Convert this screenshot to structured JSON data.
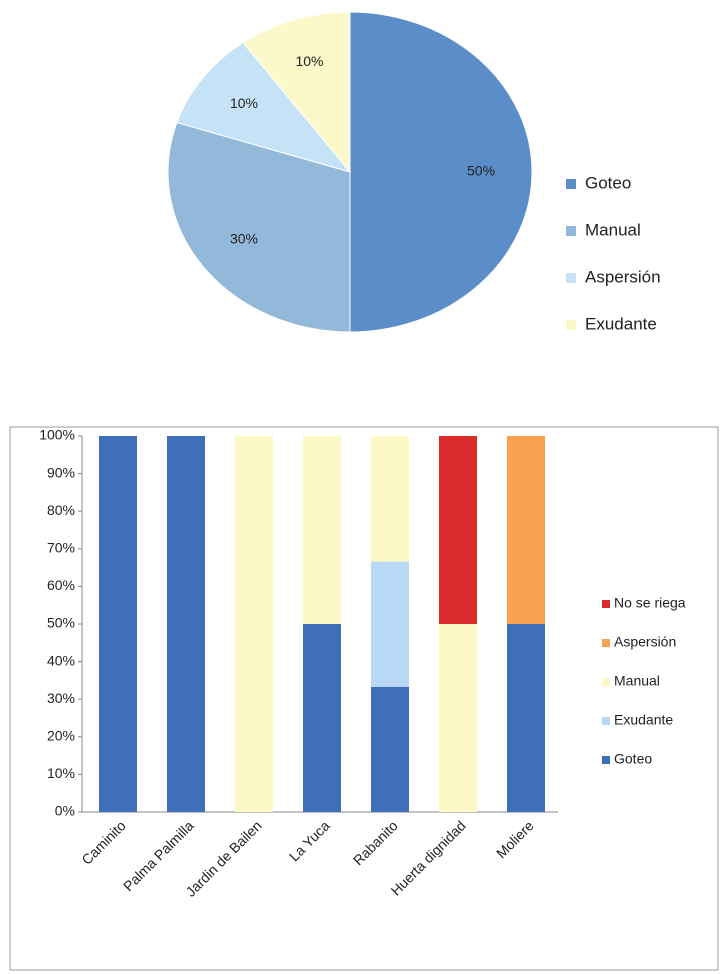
{
  "chart_data": [
    {
      "type": "pie",
      "categories": [
        "Goteo",
        "Manual",
        "Aspersión",
        "Exudante"
      ],
      "values": [
        50,
        30,
        10,
        10
      ],
      "value_labels": [
        "50%",
        "30%",
        "10%",
        "10%"
      ],
      "colors": [
        "#5b8ec8",
        "#92b8da",
        "#c6e2f6",
        "#fbf8c9"
      ],
      "legend": "right"
    },
    {
      "type": "stacked_bar",
      "categories": [
        "Caminito",
        "Palma Palmilla",
        "Jardin de Bailen",
        "La Yuca",
        "Rabanito",
        "Huerta dignidad",
        "Moliere"
      ],
      "series": [
        {
          "name": "Goteo",
          "color": "#3f6fb8",
          "values": [
            100,
            100,
            0,
            50,
            33.3,
            0,
            50
          ]
        },
        {
          "name": "Exudante",
          "color": "#b8d8f5",
          "values": [
            0,
            0,
            0,
            0,
            33.3,
            0,
            0
          ]
        },
        {
          "name": "Manual",
          "color": "#fcf9c4",
          "values": [
            0,
            0,
            100,
            50,
            33.3,
            50,
            0
          ]
        },
        {
          "name": "Aspersión",
          "color": "#f9a14f",
          "values": [
            0,
            0,
            0,
            0,
            0,
            0,
            50
          ]
        },
        {
          "name": "No se riega",
          "color": "#d92b2b",
          "values": [
            0,
            0,
            0,
            0,
            0,
            50,
            0
          ]
        }
      ],
      "ylim": [
        0,
        100
      ],
      "yticks": [
        {
          "value": 0,
          "label": "0%"
        },
        {
          "value": 10,
          "label": "10%"
        },
        {
          "value": 20,
          "label": "20%"
        },
        {
          "value": 30,
          "label": "30%"
        },
        {
          "value": 40,
          "label": "40%"
        },
        {
          "value": 50,
          "label": "50%"
        },
        {
          "value": 60,
          "label": "60%"
        },
        {
          "value": 70,
          "label": "70%"
        },
        {
          "value": 80,
          "label": "80%"
        },
        {
          "value": 90,
          "label": "90%"
        },
        {
          "value": 100,
          "label": "100%"
        }
      ],
      "legend": "right",
      "legend_order": "reversed"
    }
  ]
}
